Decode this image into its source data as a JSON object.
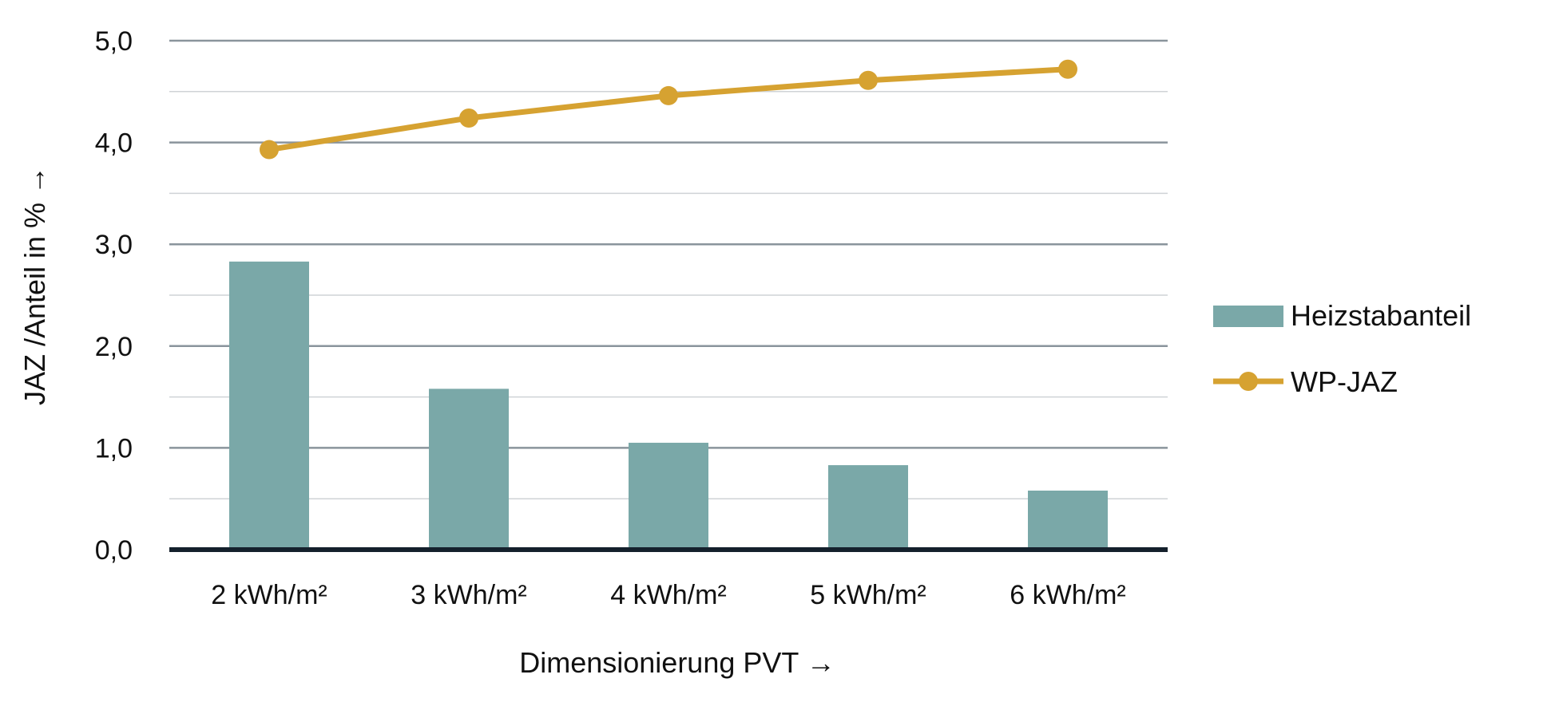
{
  "chart_data": {
    "type": "bar",
    "categories": [
      "2 kWh/m²",
      "3 kWh/m²",
      "4 kWh/m²",
      "5 kWh/m²",
      "6 kWh/m²"
    ],
    "series": [
      {
        "name": "Heizstabanteil",
        "type": "bar",
        "values": [
          2.83,
          1.58,
          1.05,
          0.83,
          0.58
        ],
        "color": "#7aa8a8"
      },
      {
        "name": "WP-JAZ",
        "type": "line",
        "values": [
          3.93,
          4.24,
          4.46,
          4.61,
          4.72
        ],
        "color": "#d6a231"
      }
    ],
    "xlabel": "Dimensionierung PVT →",
    "ylabel": "JAZ /Anteil in % →",
    "ylim": [
      0,
      5
    ],
    "yticks": [
      "0,0",
      "1,0",
      "2,0",
      "3,0",
      "4,0",
      "5,0"
    ],
    "grid": true,
    "legend_position": "right"
  }
}
